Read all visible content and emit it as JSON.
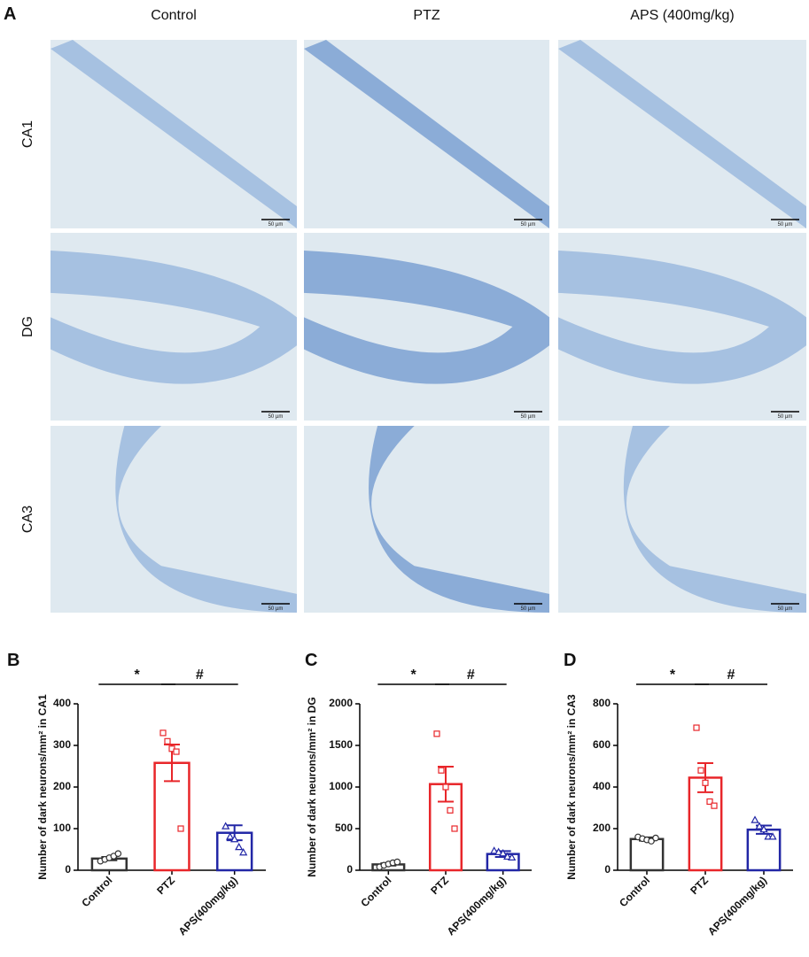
{
  "panel_a": {
    "label": "A",
    "columns": [
      "Control",
      "PTZ",
      "APS (400mg/kg)"
    ],
    "rows": [
      "CA1",
      "DG",
      "CA3"
    ],
    "scale_bar": "50 µm"
  },
  "chart_data": [
    {
      "type": "bar",
      "panel": "B",
      "ylabel": "Number of dark neurons/mm² in CA1",
      "categories": [
        "Control",
        "PTZ",
        "APS(400mg/kg)"
      ],
      "colors": [
        "#333333",
        "#e8262a",
        "#2227a6"
      ],
      "markers": [
        "circle",
        "square",
        "triangle"
      ],
      "values": [
        28,
        258,
        90
      ],
      "errors": [
        4,
        44,
        18
      ],
      "points": [
        [
          22,
          26,
          30,
          34,
          40
        ],
        [
          330,
          310,
          292,
          285,
          100
        ],
        [
          105,
          80,
          74,
          55,
          42
        ]
      ],
      "ylim": [
        0,
        400
      ],
      "yticks": [
        0,
        100,
        200,
        300,
        400
      ],
      "annotations": [
        "*",
        "#"
      ]
    },
    {
      "type": "bar",
      "panel": "C",
      "ylabel": "Number of dark neurons/mm² in DG",
      "categories": [
        "Control",
        "PTZ",
        "APS(400mg/kg)"
      ],
      "colors": [
        "#333333",
        "#e8262a",
        "#2227a6"
      ],
      "markers": [
        "circle",
        "square",
        "triangle"
      ],
      "values": [
        70,
        1035,
        195
      ],
      "errors": [
        14,
        210,
        35
      ],
      "points": [
        [
          40,
          60,
          75,
          90,
          100
        ],
        [
          1640,
          1200,
          1000,
          720,
          500
        ],
        [
          230,
          215,
          200,
          160,
          150
        ]
      ],
      "ylim": [
        0,
        2000
      ],
      "yticks": [
        0,
        500,
        1000,
        1500,
        2000
      ],
      "annotations": [
        "*",
        "#"
      ]
    },
    {
      "type": "bar",
      "panel": "D",
      "ylabel": "Number of dark neurons/mm² in CA3",
      "categories": [
        "Control",
        "PTZ",
        "APS(400mg/kg)"
      ],
      "colors": [
        "#333333",
        "#e8262a",
        "#2227a6"
      ],
      "markers": [
        "circle",
        "square",
        "triangle"
      ],
      "values": [
        150,
        445,
        195
      ],
      "errors": [
        8,
        70,
        20
      ],
      "points": [
        [
          160,
          152,
          146,
          140,
          155
        ],
        [
          685,
          480,
          420,
          330,
          310
        ],
        [
          240,
          210,
          195,
          160,
          160
        ]
      ],
      "ylim": [
        0,
        800
      ],
      "yticks": [
        0,
        200,
        400,
        600,
        800
      ],
      "annotations": [
        "*",
        "#"
      ]
    }
  ]
}
